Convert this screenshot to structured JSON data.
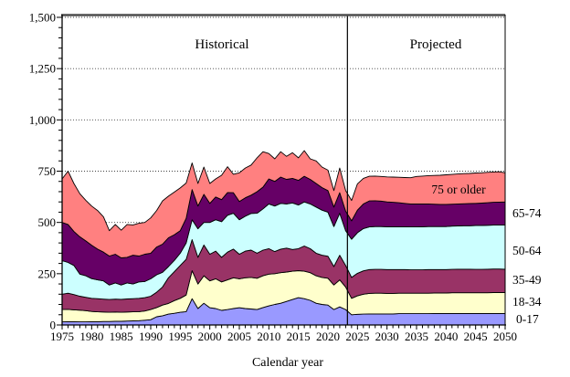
{
  "chart_data": {
    "type": "area",
    "stacked": true,
    "title": "",
    "xlabel": "Calendar year",
    "ylabel": "",
    "ylim": [
      0,
      1500
    ],
    "ytick_step": 250,
    "ytick_labels": [
      "0",
      "250",
      "500",
      "750",
      "1,000",
      "1,250",
      "1,500"
    ],
    "xtick_step": 5,
    "xtick_labels": [
      "1975",
      "1980",
      "1985",
      "1990",
      "1995",
      "2000",
      "2005",
      "2010",
      "2015",
      "2020",
      "2025",
      "2030",
      "2035",
      "2040",
      "2045",
      "2050"
    ],
    "grid": "dotted-horizontal",
    "legend_position": "right-of-plot",
    "annotations": {
      "historical_label": "Historical",
      "projected_label": "Projected",
      "divider_year": 2023.3,
      "inside_series_label": "75 or older"
    },
    "years": [
      1975,
      1976,
      1977,
      1978,
      1979,
      1980,
      1981,
      1982,
      1983,
      1984,
      1985,
      1986,
      1987,
      1988,
      1989,
      1990,
      1991,
      1992,
      1993,
      1994,
      1995,
      1996,
      1997,
      1998,
      1999,
      2000,
      2001,
      2002,
      2003,
      2004,
      2005,
      2006,
      2007,
      2008,
      2009,
      2010,
      2011,
      2012,
      2013,
      2014,
      2015,
      2016,
      2017,
      2018,
      2019,
      2020,
      2021,
      2022,
      2023,
      2024,
      2025,
      2026,
      2027,
      2028,
      2029,
      2030,
      2031,
      2032,
      2033,
      2034,
      2035,
      2036,
      2037,
      2038,
      2039,
      2040,
      2041,
      2042,
      2043,
      2044,
      2045,
      2046,
      2047,
      2048,
      2049,
      2050
    ],
    "series": [
      {
        "name": "0-17",
        "color": "#9999FF",
        "values": [
          15,
          16,
          16,
          15,
          15,
          16,
          16,
          17,
          17,
          18,
          18,
          19,
          20,
          21,
          23,
          26,
          40,
          45,
          53,
          57,
          62,
          65,
          128,
          80,
          106,
          84,
          80,
          71,
          75,
          80,
          84,
          80,
          78,
          75,
          85,
          93,
          100,
          106,
          115,
          124,
          133,
          128,
          120,
          106,
          100,
          97,
          75,
          88,
          75,
          50,
          52,
          53,
          54,
          54,
          54,
          54,
          54,
          55,
          55,
          55,
          55,
          55,
          55,
          56,
          56,
          56,
          56,
          56,
          56,
          56,
          56,
          56,
          56,
          56,
          56,
          56
        ]
      },
      {
        "name": "18-34",
        "color": "#FFFFCC",
        "values": [
          60,
          60,
          58,
          57,
          55,
          50,
          48,
          46,
          45,
          45,
          44,
          44,
          44,
          44,
          45,
          49,
          45,
          52,
          52,
          62,
          68,
          81,
          137,
          120,
          134,
          131,
          145,
          139,
          145,
          150,
          141,
          150,
          154,
          153,
          155,
          155,
          150,
          149,
          143,
          138,
          132,
          134,
          135,
          134,
          132,
          131,
          120,
          132,
          110,
          80,
          90,
          97,
          100,
          101,
          101,
          100,
          100,
          100,
          100,
          100,
          100,
          100,
          100,
          100,
          100,
          100,
          101,
          101,
          101,
          101,
          101,
          101,
          101,
          102,
          102,
          102
        ]
      },
      {
        "name": "35-49",
        "color": "#993366",
        "values": [
          75,
          79,
          74,
          68,
          65,
          64,
          64,
          63,
          62,
          63,
          63,
          64,
          64,
          65,
          65,
          65,
          75,
          88,
          125,
          141,
          160,
          174,
          151,
          130,
          150,
          130,
          135,
          120,
          135,
          140,
          120,
          130,
          133,
          122,
          125,
          124,
          108,
          115,
          117,
          106,
          107,
          123,
          117,
          110,
          108,
          107,
          90,
          120,
          105,
          102,
          110,
          114,
          116,
          116,
          116,
          116,
          116,
          115,
          115,
          114,
          114,
          114,
          115,
          114,
          114,
          114,
          114,
          115,
          115,
          115,
          114,
          114,
          115,
          115,
          115,
          114
        ]
      },
      {
        "name": "50-64",
        "color": "#CCFFFF",
        "values": [
          164,
          150,
          142,
          108,
          105,
          96,
          92,
          89,
          71,
          79,
          70,
          78,
          72,
          80,
          79,
          85,
          85,
          72,
          55,
          55,
          60,
          80,
          97,
          139,
          110,
          155,
          153,
          174,
          180,
          175,
          168,
          170,
          179,
          195,
          201,
          218,
          222,
          223,
          215,
          227,
          213,
          215,
          218,
          225,
          220,
          215,
          195,
          205,
          170,
          186,
          198,
          206,
          208,
          209,
          209,
          209,
          209,
          209,
          209,
          209,
          209,
          210,
          210,
          210,
          210,
          210,
          211,
          211,
          212,
          212,
          214,
          214,
          214,
          214,
          214,
          215
        ]
      },
      {
        "name": "65-74",
        "color": "#660066",
        "values": [
          186,
          185,
          166,
          182,
          170,
          163,
          150,
          140,
          141,
          140,
          132,
          125,
          140,
          126,
          133,
          125,
          135,
          137,
          140,
          125,
          110,
          120,
          147,
          111,
          137,
          93,
          111,
          107,
          111,
          100,
          89,
          90,
          89,
          105,
          106,
          122,
          120,
          128,
          120,
          120,
          120,
          125,
          120,
          115,
          110,
          105,
          95,
          100,
          95,
          90,
          110,
          120,
          127,
          126,
          124,
          121,
          119,
          117,
          114,
          112,
          112,
          111,
          110,
          109,
          108,
          108,
          107,
          107,
          107,
          108,
          108,
          109,
          110,
          111,
          112,
          113
        ]
      },
      {
        "name": "75 or older",
        "color": "#FF8080",
        "values": [
          212,
          260,
          234,
          210,
          198,
          191,
          188,
          172,
          124,
          145,
          135,
          160,
          148,
          160,
          155,
          172,
          178,
          211,
          203,
          208,
          208,
          172,
          130,
          110,
          133,
          97,
          88,
          119,
          126,
          90,
          140,
          145,
          147,
          165,
          173,
          124,
          110,
          124,
          112,
          125,
          110,
          125,
          100,
          110,
          100,
          100,
          80,
          120,
          100,
          99,
          128,
          125,
          120,
          120,
          120,
          122,
          123,
          124,
          126,
          128,
          134,
          136,
          138,
          140,
          142,
          144,
          145,
          146,
          147,
          147,
          148,
          148,
          148,
          148,
          148,
          142
        ]
      }
    ]
  }
}
